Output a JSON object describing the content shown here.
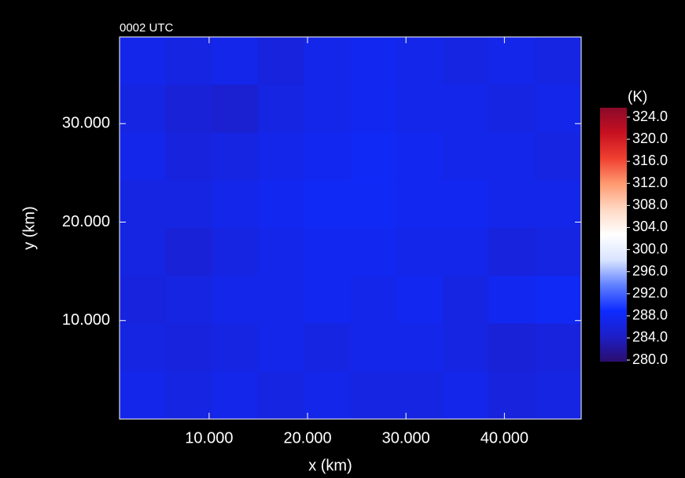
{
  "chart_data": {
    "type": "heatmap",
    "title": "0002 UTC",
    "xlabel": "x (km)",
    "ylabel": "y (km)",
    "xlim": [
      0.9,
      47.8
    ],
    "ylim": [
      0,
      38.8
    ],
    "xticks": [
      {
        "value": 10,
        "label": "10.000"
      },
      {
        "value": 20,
        "label": "20.000"
      },
      {
        "value": 30,
        "label": "30.000"
      },
      {
        "value": 40,
        "label": "40.000"
      }
    ],
    "yticks": [
      {
        "value": 10,
        "label": "10.000"
      },
      {
        "value": 20,
        "label": "20.000"
      },
      {
        "value": 30,
        "label": "30.000"
      }
    ],
    "z": [
      [
        287,
        286.5,
        287,
        286,
        287,
        287.5,
        287,
        286.5,
        287,
        286.5
      ],
      [
        286.5,
        285.5,
        285,
        286.5,
        287,
        287.5,
        287,
        287,
        286.5,
        287
      ],
      [
        287,
        286,
        286.5,
        287,
        287.5,
        288,
        287.5,
        287,
        287,
        286.5
      ],
      [
        286.5,
        286.5,
        287,
        287.5,
        288,
        288,
        287.5,
        287.5,
        287,
        287
      ],
      [
        286.5,
        285.5,
        286.5,
        287,
        287.5,
        287.5,
        287,
        287,
        286,
        286.5
      ],
      [
        286,
        286.5,
        287,
        287,
        287.5,
        287,
        287.5,
        286.5,
        287.5,
        288
      ],
      [
        286.5,
        286,
        286.5,
        287,
        286.5,
        287,
        287,
        286.5,
        285.5,
        286
      ],
      [
        287,
        286.5,
        287,
        286.5,
        287,
        286.5,
        286.5,
        287,
        286,
        286.5
      ]
    ],
    "colorbar": {
      "title": "(K)",
      "clim": [
        280,
        324
      ],
      "colors": [
        "#2a0d6e",
        "#1d1fc8",
        "#0d2bff",
        "#5f7fff",
        "#d8e4ff",
        "#ffffff",
        "#ffd8c4",
        "#ff9a70",
        "#f04030",
        "#c81020",
        "#8a0a2a"
      ],
      "ticks": [
        {
          "value": 280,
          "label": "280.0"
        },
        {
          "value": 284,
          "label": "284.0"
        },
        {
          "value": 288,
          "label": "288.0"
        },
        {
          "value": 292,
          "label": "292.0"
        },
        {
          "value": 296,
          "label": "296.0"
        },
        {
          "value": 300,
          "label": "300.0"
        },
        {
          "value": 304,
          "label": "304.0"
        },
        {
          "value": 308,
          "label": "308.0"
        },
        {
          "value": 312,
          "label": "312.0"
        },
        {
          "value": 316,
          "label": "316.0"
        },
        {
          "value": 320,
          "label": "320.0"
        },
        {
          "value": 324,
          "label": "324.0"
        }
      ]
    }
  }
}
